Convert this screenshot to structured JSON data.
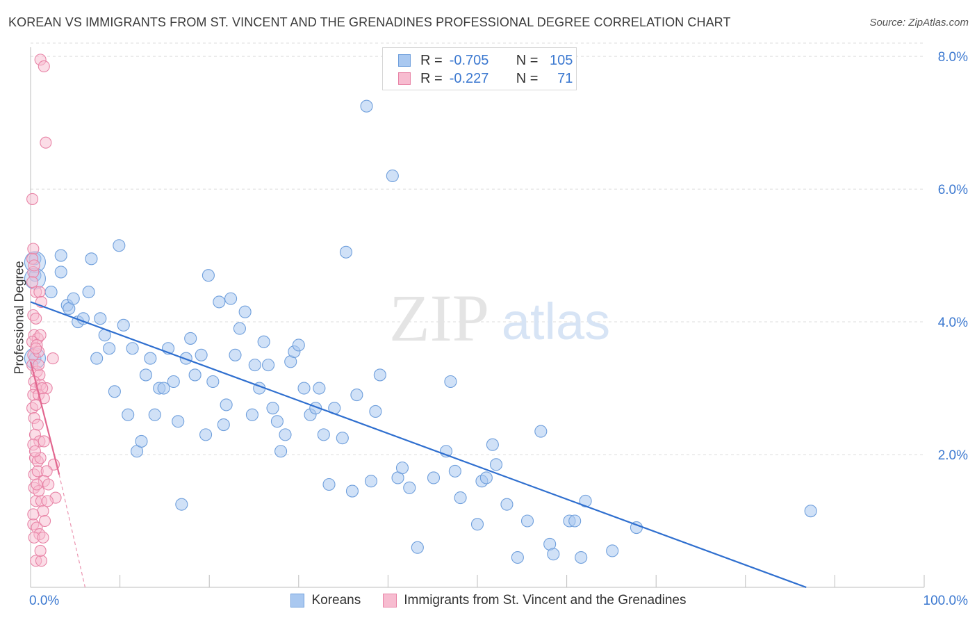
{
  "title": "KOREAN VS IMMIGRANTS FROM ST. VINCENT AND THE GRENADINES PROFESSIONAL DEGREE CORRELATION CHART",
  "source": "Source: ZipAtlas.com",
  "watermark": {
    "zip": "ZIP",
    "atlas": "atlas"
  },
  "legend_top": {
    "rows": [
      {
        "r_label": "R =",
        "r_value": "-0.705",
        "n_label": "N =",
        "n_value": "105",
        "color": "#a9c8f0",
        "border": "#6f9fdc"
      },
      {
        "r_label": "R =",
        "r_value": "-0.227",
        "n_label": "N =",
        "n_value": "71",
        "color": "#f7bcd0",
        "border": "#e883a6"
      }
    ]
  },
  "legend_bottom": [
    {
      "label": "Koreans",
      "color": "#a9c8f0",
      "border": "#6f9fdc"
    },
    {
      "label": "Immigrants from St. Vincent and the Grenadines",
      "color": "#f7bcd0",
      "border": "#e883a6"
    }
  ],
  "chart_data": {
    "type": "scatter",
    "title": "KOREAN VS IMMIGRANTS FROM ST. VINCENT AND THE GRENADINES PROFESSIONAL DEGREE CORRELATION CHART",
    "xlabel": "",
    "ylabel": "Professional Degree",
    "xlim": [
      0,
      100
    ],
    "ylim": [
      0,
      8.2
    ],
    "x_tick_labels": [
      {
        "value": 0,
        "label": "0.0%"
      },
      {
        "value": 100,
        "label": "100.0%"
      }
    ],
    "y_tick_labels": [
      {
        "value": 2,
        "label": "2.0%"
      },
      {
        "value": 4,
        "label": "4.0%"
      },
      {
        "value": 6,
        "label": "6.0%"
      },
      {
        "value": 8,
        "label": "8.0%"
      }
    ],
    "grid": "horizontal dashed",
    "series": [
      {
        "name": "Koreans",
        "color": "#a9c8f0",
        "stroke": "#6f9fdc",
        "line_color": "#2f6fcf",
        "trend": [
          {
            "x": 0,
            "y": 4.3
          },
          {
            "x": 86.8,
            "y": 0.0
          }
        ],
        "points": [
          [
            0.5,
            4.95
          ],
          [
            0.5,
            4.7
          ],
          [
            0.5,
            3.45
          ],
          [
            2.3,
            4.45
          ],
          [
            3.4,
            4.75
          ],
          [
            3.4,
            5.0
          ],
          [
            4.1,
            4.25
          ],
          [
            4.3,
            4.2
          ],
          [
            4.8,
            4.35
          ],
          [
            5.3,
            4.0
          ],
          [
            5.9,
            4.05
          ],
          [
            6.5,
            4.45
          ],
          [
            6.8,
            4.95
          ],
          [
            7.4,
            3.45
          ],
          [
            7.8,
            4.05
          ],
          [
            8.3,
            3.8
          ],
          [
            8.8,
            3.6
          ],
          [
            9.4,
            2.95
          ],
          [
            9.9,
            5.15
          ],
          [
            10.4,
            3.95
          ],
          [
            10.9,
            2.6
          ],
          [
            11.4,
            3.6
          ],
          [
            11.9,
            2.05
          ],
          [
            12.4,
            2.2
          ],
          [
            12.9,
            3.2
          ],
          [
            13.4,
            3.45
          ],
          [
            13.9,
            2.6
          ],
          [
            14.4,
            3.0
          ],
          [
            14.9,
            3.0
          ],
          [
            15.4,
            3.6
          ],
          [
            16.0,
            3.1
          ],
          [
            16.5,
            2.5
          ],
          [
            16.9,
            1.25
          ],
          [
            17.4,
            3.45
          ],
          [
            17.9,
            3.75
          ],
          [
            18.4,
            3.2
          ],
          [
            19.1,
            3.5
          ],
          [
            19.6,
            2.3
          ],
          [
            19.9,
            4.7
          ],
          [
            20.4,
            3.1
          ],
          [
            21.1,
            4.3
          ],
          [
            21.6,
            2.45
          ],
          [
            21.9,
            2.75
          ],
          [
            22.4,
            4.35
          ],
          [
            22.9,
            3.5
          ],
          [
            23.4,
            3.9
          ],
          [
            24.0,
            4.15
          ],
          [
            24.8,
            2.6
          ],
          [
            25.1,
            3.35
          ],
          [
            25.6,
            3.0
          ],
          [
            26.1,
            3.7
          ],
          [
            26.6,
            3.35
          ],
          [
            27.1,
            2.7
          ],
          [
            27.6,
            2.5
          ],
          [
            28.0,
            2.05
          ],
          [
            28.5,
            2.3
          ],
          [
            29.1,
            3.4
          ],
          [
            29.5,
            3.55
          ],
          [
            30.0,
            3.65
          ],
          [
            30.6,
            3.0
          ],
          [
            31.3,
            2.6
          ],
          [
            31.9,
            2.7
          ],
          [
            32.3,
            3.0
          ],
          [
            32.8,
            2.3
          ],
          [
            33.4,
            1.55
          ],
          [
            34.0,
            2.7
          ],
          [
            34.9,
            2.25
          ],
          [
            35.3,
            5.05
          ],
          [
            36.0,
            1.45
          ],
          [
            36.5,
            2.9
          ],
          [
            37.6,
            7.25
          ],
          [
            38.1,
            1.6
          ],
          [
            38.6,
            2.65
          ],
          [
            39.1,
            3.2
          ],
          [
            40.5,
            6.2
          ],
          [
            41.1,
            1.65
          ],
          [
            41.6,
            1.8
          ],
          [
            42.4,
            1.5
          ],
          [
            43.3,
            0.6
          ],
          [
            45.1,
            1.65
          ],
          [
            46.5,
            2.05
          ],
          [
            47.0,
            3.1
          ],
          [
            47.5,
            1.75
          ],
          [
            48.1,
            1.35
          ],
          [
            50.0,
            0.95
          ],
          [
            50.5,
            1.6
          ],
          [
            51.0,
            1.65
          ],
          [
            51.7,
            2.15
          ],
          [
            52.1,
            1.85
          ],
          [
            53.3,
            1.25
          ],
          [
            54.5,
            0.45
          ],
          [
            55.6,
            1.0
          ],
          [
            57.1,
            2.35
          ],
          [
            58.1,
            0.65
          ],
          [
            58.5,
            0.5
          ],
          [
            60.3,
            1.0
          ],
          [
            60.9,
            1.0
          ],
          [
            61.6,
            0.45
          ],
          [
            62.1,
            1.3
          ],
          [
            65.1,
            0.55
          ],
          [
            67.8,
            0.9
          ],
          [
            87.3,
            1.15
          ]
        ],
        "large_points": [
          [
            0.5,
            4.9
          ],
          [
            0.5,
            4.65
          ],
          [
            0.5,
            3.45
          ]
        ]
      },
      {
        "name": "Immigrants from St. Vincent and the Grenadines",
        "color": "#f7bcd0",
        "stroke": "#e883a6",
        "line_color": "#e2668f",
        "trend": [
          {
            "x": 0,
            "y": 3.4
          },
          {
            "x": 3.2,
            "y": 1.7
          }
        ],
        "trend_dashed": [
          {
            "x": 3.2,
            "y": 1.7
          },
          {
            "x": 6.1,
            "y": 0.0
          }
        ],
        "points": [
          [
            1.1,
            7.95
          ],
          [
            1.5,
            7.85
          ],
          [
            1.7,
            6.7
          ],
          [
            0.2,
            5.85
          ],
          [
            0.3,
            5.1
          ],
          [
            0.2,
            4.95
          ],
          [
            0.3,
            4.75
          ],
          [
            0.6,
            4.45
          ],
          [
            1.0,
            4.45
          ],
          [
            1.2,
            4.3
          ],
          [
            0.3,
            4.1
          ],
          [
            0.6,
            4.05
          ],
          [
            0.4,
            3.8
          ],
          [
            0.8,
            3.75
          ],
          [
            1.1,
            3.8
          ],
          [
            0.2,
            3.7
          ],
          [
            0.7,
            3.65
          ],
          [
            0.3,
            3.5
          ],
          [
            0.9,
            3.55
          ],
          [
            2.5,
            3.45
          ],
          [
            0.2,
            3.35
          ],
          [
            0.7,
            3.25
          ],
          [
            1.0,
            3.2
          ],
          [
            0.4,
            3.1
          ],
          [
            0.6,
            3.0
          ],
          [
            1.1,
            3.05
          ],
          [
            1.8,
            3.0
          ],
          [
            0.3,
            2.9
          ],
          [
            0.9,
            2.9
          ],
          [
            1.5,
            2.85
          ],
          [
            0.2,
            2.7
          ],
          [
            0.6,
            2.75
          ],
          [
            0.4,
            2.55
          ],
          [
            0.8,
            2.45
          ],
          [
            0.5,
            2.3
          ],
          [
            1.0,
            2.2
          ],
          [
            1.5,
            2.2
          ],
          [
            0.3,
            2.15
          ],
          [
            0.5,
            1.95
          ],
          [
            0.8,
            1.9
          ],
          [
            1.1,
            1.95
          ],
          [
            2.6,
            1.85
          ],
          [
            0.4,
            1.7
          ],
          [
            0.8,
            1.75
          ],
          [
            1.8,
            1.75
          ],
          [
            1.5,
            1.6
          ],
          [
            2.0,
            1.55
          ],
          [
            0.4,
            1.5
          ],
          [
            0.9,
            1.45
          ],
          [
            2.8,
            1.35
          ],
          [
            0.6,
            1.3
          ],
          [
            1.2,
            1.3
          ],
          [
            1.4,
            1.15
          ],
          [
            0.3,
            0.95
          ],
          [
            0.7,
            0.9
          ],
          [
            1.6,
            1.0
          ],
          [
            1.0,
            0.8
          ],
          [
            0.4,
            0.75
          ],
          [
            1.4,
            0.75
          ],
          [
            0.6,
            0.4
          ],
          [
            1.2,
            0.4
          ],
          [
            0.2,
            4.6
          ],
          [
            0.4,
            4.85
          ],
          [
            0.9,
            3.35
          ],
          [
            1.3,
            3.0
          ],
          [
            0.5,
            2.05
          ],
          [
            0.7,
            1.55
          ],
          [
            1.9,
            1.3
          ],
          [
            0.3,
            1.1
          ],
          [
            1.1,
            0.55
          ],
          [
            0.6,
            3.6
          ]
        ]
      }
    ]
  }
}
